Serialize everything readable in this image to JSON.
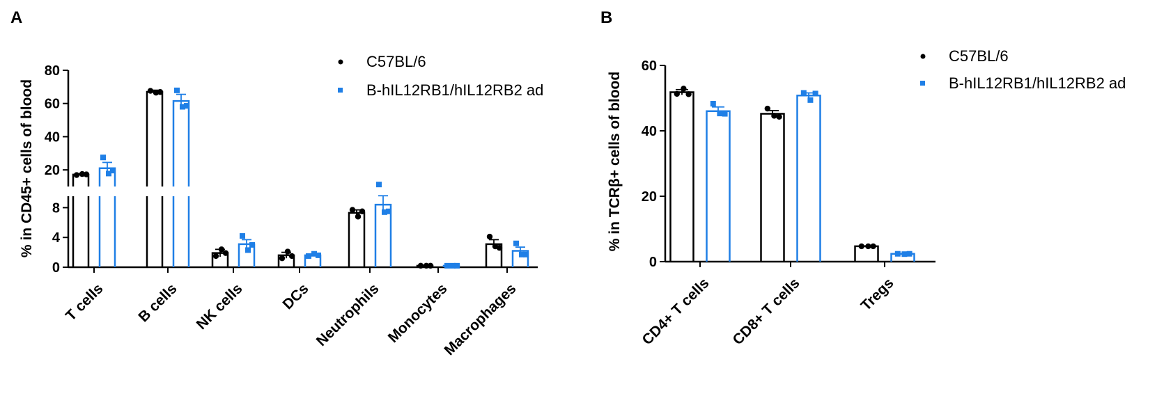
{
  "panels": [
    {
      "letter": "A"
    },
    {
      "letter": "B"
    }
  ],
  "legend": {
    "entries": [
      {
        "label": "C57BL/6",
        "color": "#000000",
        "marker": "circle"
      },
      {
        "label": "B-hIL12RB1/hIL12RB2 ad",
        "color": "#1f7fe6",
        "marker": "square"
      }
    ]
  },
  "chart_data": [
    {
      "type": "bar",
      "panel": "A",
      "ylabel": "% in CD45+ cells of blood",
      "xlabel": "",
      "y_axis": "broken",
      "ylim_lower": [
        0,
        10
      ],
      "ylim_upper": [
        10,
        80
      ],
      "yticks_lower": [
        0,
        4,
        8
      ],
      "yticks_upper": [
        20,
        40,
        60,
        80
      ],
      "categories": [
        "T cells",
        "B cells",
        "NK cells",
        "DCs",
        "Neutrophils",
        "Monocytes",
        "Macrophages"
      ],
      "series": [
        {
          "name": "C57BL/6",
          "color": "#000000",
          "marker": "circle",
          "values": [
            17.2,
            67.0,
            1.9,
            1.6,
            7.3,
            0.2,
            3.1
          ],
          "errors": [
            0.5,
            1.0,
            0.5,
            0.4,
            0.4,
            0.05,
            0.6
          ],
          "points": [
            [
              16.9,
              17.5,
              17.3
            ],
            [
              67.6,
              66.5,
              66.9
            ],
            [
              1.5,
              2.4,
              1.9
            ],
            [
              1.2,
              2.1,
              1.5
            ],
            [
              7.7,
              6.8,
              7.5
            ],
            [
              0.2,
              0.2,
              0.2
            ],
            [
              4.1,
              2.8,
              2.6
            ]
          ]
        },
        {
          "name": "B-hIL12RB1/hIL12RB2 ad",
          "color": "#1f7fe6",
          "marker": "square",
          "values": [
            21.0,
            61.5,
            3.1,
            1.6,
            8.4,
            0.2,
            2.2
          ],
          "errors": [
            3.5,
            4.0,
            0.6,
            0.15,
            1.2,
            0.05,
            0.5
          ],
          "points": [
            [
              27.5,
              17.8,
              19.6
            ],
            [
              67.9,
              58.0,
              58.6
            ],
            [
              4.2,
              2.3,
              3.0
            ],
            [
              1.5,
              1.8,
              1.6
            ],
            [
              11.2,
              7.4,
              7.5
            ],
            [
              0.2,
              0.2,
              0.2
            ],
            [
              3.2,
              1.7,
              1.7
            ]
          ]
        }
      ]
    },
    {
      "type": "bar",
      "panel": "B",
      "ylabel": "% in TCRβ+ cells of blood",
      "xlabel": "",
      "ylim": [
        0,
        60
      ],
      "yticks": [
        0,
        20,
        40,
        60
      ],
      "categories": [
        "CD4+ T cells",
        "CD8+ T cells",
        "Tregs"
      ],
      "series": [
        {
          "name": "C57BL/6",
          "color": "#000000",
          "marker": "circle",
          "values": [
            51.8,
            45.2,
            4.7
          ],
          "errors": [
            0.8,
            1.0,
            0.1
          ],
          "points": [
            [
              51.3,
              52.9,
              51.2
            ],
            [
              46.8,
              44.6,
              44.3
            ],
            [
              4.7,
              4.7,
              4.7
            ]
          ]
        },
        {
          "name": "B-hIL12RB1/hIL12RB2 ad",
          "color": "#1f7fe6",
          "marker": "square",
          "values": [
            46.0,
            50.8,
            2.4
          ],
          "errors": [
            1.3,
            0.8,
            0.1
          ],
          "points": [
            [
              48.3,
              45.3,
              45.2
            ],
            [
              51.6,
              49.4,
              51.4
            ],
            [
              2.4,
              2.3,
              2.4
            ]
          ]
        }
      ]
    }
  ]
}
